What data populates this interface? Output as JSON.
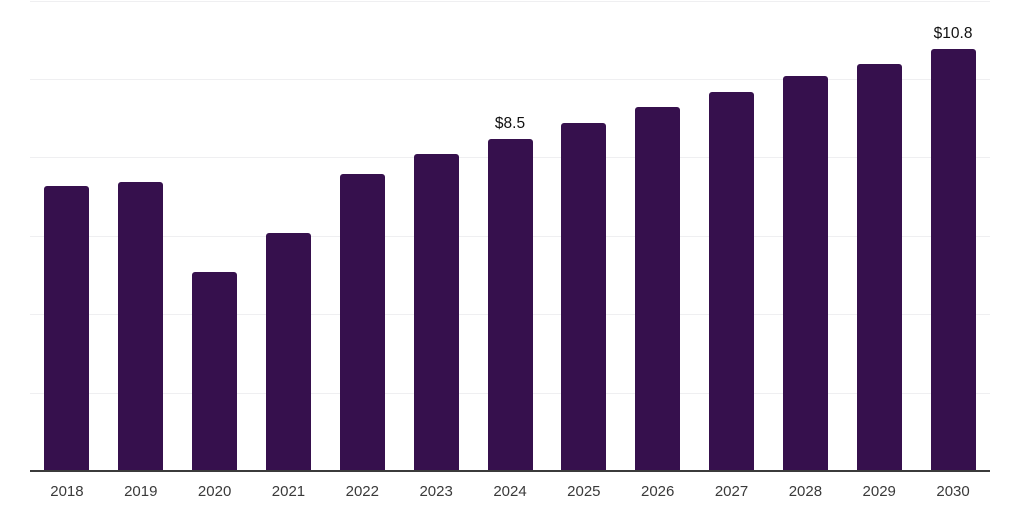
{
  "chart_data": {
    "type": "bar",
    "title": "",
    "xlabel": "",
    "ylabel": "",
    "categories": [
      "2018",
      "2019",
      "2020",
      "2021",
      "2022",
      "2023",
      "2024",
      "2025",
      "2026",
      "2027",
      "2028",
      "2029",
      "2030"
    ],
    "values": [
      7.3,
      7.4,
      5.1,
      6.1,
      7.6,
      8.1,
      8.5,
      8.9,
      9.3,
      9.7,
      10.1,
      10.4,
      10.8
    ],
    "annotations": [
      {
        "category": "2024",
        "text": "$8.5"
      },
      {
        "category": "2030",
        "text": "$10.8"
      }
    ],
    "ylim": [
      0,
      12
    ],
    "gridline_step": 2,
    "grid": "horizontal-only",
    "legend": "none",
    "colors": {
      "bar": "#36104d",
      "gridline": "#efeff1",
      "axis_line": "#3b3b3b",
      "tick_label": "#3a3a3a",
      "annotation": "#111111",
      "background": "#ffffff"
    }
  }
}
